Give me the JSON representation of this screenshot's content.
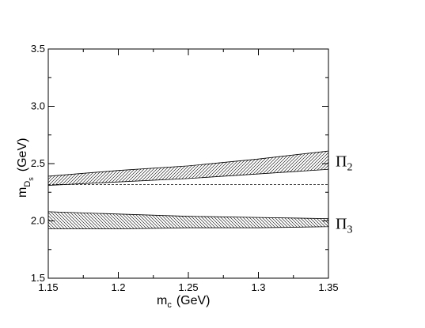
{
  "chart_data": {
    "type": "area",
    "xlabel": {
      "main": "m",
      "sub": "c",
      "unit": "(GeV)"
    },
    "ylabel": {
      "main": "m",
      "sub": "D",
      "subsub": "s",
      "unit": "(GeV)"
    },
    "xlim": [
      1.15,
      1.35
    ],
    "ylim": [
      1.5,
      3.5
    ],
    "xticks": [
      1.15,
      1.2,
      1.25,
      1.3,
      1.35
    ],
    "xtick_labels": [
      "1.15",
      "1.2",
      "1.25",
      "1.3",
      "1.35"
    ],
    "yticks": [
      1.5,
      2.0,
      2.5,
      3.0,
      3.5
    ],
    "ytick_labels": [
      "1.5",
      "2.0",
      "2.5",
      "3.0",
      "3.5"
    ],
    "grid": false,
    "series": [
      {
        "label": {
          "main": "Π",
          "sub": "2"
        },
        "hatch": "forward",
        "x": [
          1.15,
          1.2,
          1.25,
          1.3,
          1.35
        ],
        "upper": [
          2.39,
          2.44,
          2.48,
          2.54,
          2.61
        ],
        "lower": [
          2.31,
          2.34,
          2.37,
          2.41,
          2.45
        ]
      },
      {
        "label": {
          "main": "Π",
          "sub": "3"
        },
        "hatch": "backward",
        "x": [
          1.15,
          1.2,
          1.25,
          1.3,
          1.35
        ],
        "upper": [
          2.08,
          2.06,
          2.04,
          2.03,
          2.02
        ],
        "lower": [
          1.93,
          1.93,
          1.94,
          1.94,
          1.95
        ]
      }
    ],
    "reference_line": {
      "y": 2.318,
      "style": "dashed"
    }
  }
}
